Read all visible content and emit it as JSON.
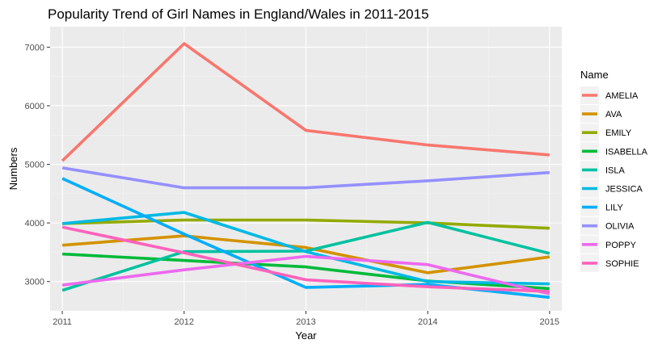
{
  "chart_data": {
    "type": "line",
    "title": "Popularity Trend of Girl Names in England/Wales in 2011-2015",
    "xlabel": "Year",
    "ylabel": "Numbers",
    "x": [
      2011,
      2012,
      2013,
      2014,
      2015
    ],
    "xlim": [
      2010.9,
      2015.1
    ],
    "ylim": [
      2500,
      7350
    ],
    "yticks": [
      3000,
      4000,
      5000,
      6000,
      7000
    ],
    "grid": true,
    "legend": {
      "title": "Name",
      "position": "right"
    },
    "series": [
      {
        "name": "AMELIA",
        "color": "#F8766D",
        "values": [
          5060,
          7060,
          5580,
          5330,
          5160
        ]
      },
      {
        "name": "AVA",
        "color": "#D39200",
        "values": [
          3620,
          3780,
          3580,
          3150,
          3420
        ]
      },
      {
        "name": "EMILY",
        "color": "#93AA00",
        "values": [
          3990,
          4050,
          4050,
          4000,
          3910
        ]
      },
      {
        "name": "ISABELLA",
        "color": "#00BA38",
        "values": [
          3470,
          3360,
          3250,
          3010,
          2880
        ]
      },
      {
        "name": "ISLA",
        "color": "#00C19F",
        "values": [
          2850,
          3510,
          3520,
          4010,
          3480
        ]
      },
      {
        "name": "JESSICA",
        "color": "#00B9E3",
        "values": [
          3990,
          4180,
          3510,
          3000,
          2960
        ]
      },
      {
        "name": "LILY",
        "color": "#00ADFA",
        "values": [
          4760,
          3810,
          2900,
          2950,
          2730
        ]
      },
      {
        "name": "OLIVIA",
        "color": "#9590FF",
        "values": [
          4940,
          4600,
          4600,
          4720,
          4860
        ]
      },
      {
        "name": "POPPY",
        "color": "#EC69EF",
        "values": [
          2940,
          3200,
          3430,
          3290,
          2790
        ]
      },
      {
        "name": "SOPHIE",
        "color": "#FF62BC",
        "values": [
          3930,
          3490,
          3030,
          2910,
          2830
        ]
      }
    ]
  }
}
